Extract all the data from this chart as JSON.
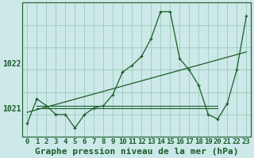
{
  "bg_color": "#cce8e8",
  "grid_color": "#99ccbb",
  "line_color": "#1a5c2a",
  "title": "Graphe pression niveau de la mer (hPa)",
  "xlim": [
    -0.5,
    23.5
  ],
  "ylim": [
    1020.35,
    1023.35
  ],
  "yticks": [
    1021,
    1022
  ],
  "xticks": [
    0,
    1,
    2,
    3,
    4,
    5,
    6,
    7,
    8,
    9,
    10,
    11,
    12,
    13,
    14,
    15,
    16,
    17,
    18,
    19,
    20,
    21,
    22,
    23
  ],
  "main_line": [
    [
      0,
      1020.65
    ],
    [
      1,
      1021.2
    ],
    [
      2,
      1021.05
    ],
    [
      3,
      1020.85
    ],
    [
      4,
      1020.85
    ],
    [
      5,
      1020.55
    ],
    [
      6,
      1020.85
    ],
    [
      7,
      1021.0
    ],
    [
      8,
      1021.05
    ],
    [
      9,
      1021.3
    ],
    [
      10,
      1021.8
    ],
    [
      11,
      1021.95
    ],
    [
      12,
      1022.15
    ],
    [
      13,
      1022.55
    ],
    [
      14,
      1023.15
    ],
    [
      15,
      1023.15
    ],
    [
      16,
      1022.1
    ],
    [
      17,
      1021.85
    ],
    [
      18,
      1021.5
    ],
    [
      19,
      1020.85
    ],
    [
      20,
      1020.75
    ],
    [
      21,
      1021.1
    ],
    [
      22,
      1021.85
    ],
    [
      23,
      1023.05
    ]
  ],
  "trend_line": [
    [
      0,
      1020.9
    ],
    [
      23,
      1022.25
    ]
  ],
  "flat_line1": [
    [
      1,
      1021.05
    ],
    [
      20,
      1021.05
    ]
  ],
  "flat_line2": [
    [
      1,
      1021.0
    ],
    [
      20,
      1021.0
    ]
  ],
  "title_fontsize": 8,
  "tick_fontsize": 6.5
}
